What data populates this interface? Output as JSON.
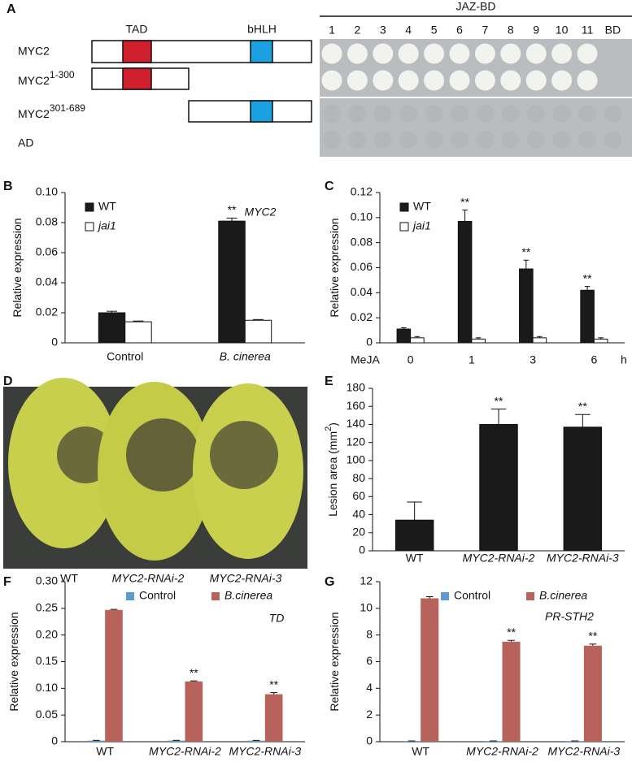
{
  "panels": {
    "a": "A",
    "d": "D"
  },
  "diagram": {
    "domains": [
      "TAD",
      "bHLH"
    ],
    "constructs": [
      {
        "name": "MYC2"
      },
      {
        "name": "MYC2",
        "sup": "1-300"
      },
      {
        "name": "MYC2",
        "sup": "301-689"
      },
      {
        "name": "AD"
      }
    ],
    "header": "JAZ-BD",
    "columns": [
      "1",
      "2",
      "3",
      "4",
      "5",
      "6",
      "7",
      "8",
      "9",
      "10",
      "11",
      "BD"
    ]
  },
  "photo": {
    "labels": [
      "WT",
      "MYC2-RNAi-2",
      "MYC2-RNAi-3"
    ]
  },
  "chart_data": [
    {
      "type": "bar",
      "panel": "B",
      "y_label": "Relative expression",
      "annotation": "MYC2",
      "categories": [
        "Control",
        "B. cinerea"
      ],
      "category_italic": [
        false,
        true
      ],
      "series": [
        {
          "name": "WT",
          "color": "#1a1a1a",
          "values": [
            0.02,
            0.081
          ],
          "errors": [
            0.001,
            0.002
          ],
          "significance": [
            null,
            "**"
          ]
        },
        {
          "name": "jai1",
          "italic": true,
          "color": "#ffffff",
          "values": [
            0.014,
            0.015
          ],
          "errors": [
            0.0005,
            0.0005
          ]
        }
      ],
      "ylim": [
        0,
        0.1
      ],
      "yticks": [
        0,
        0.02,
        0.04,
        0.06,
        0.08,
        {
          "value": 0.1,
          "label": "0.10"
        }
      ],
      "legend": "upper left",
      "bar_outline": true
    },
    {
      "type": "bar",
      "panel": "C",
      "y_label": "Relative expression",
      "x_label": "MeJA",
      "x_unit": "h",
      "categories": [
        "0",
        "1",
        "3",
        "6"
      ],
      "series": [
        {
          "name": "WT",
          "color": "#1a1a1a",
          "values": [
            0.011,
            0.097,
            0.059,
            0.042
          ],
          "errors": [
            0.001,
            0.009,
            0.007,
            0.003
          ],
          "significance": [
            null,
            "**",
            "**",
            "**"
          ]
        },
        {
          "name": "jai1",
          "italic": true,
          "color": "#ffffff",
          "values": [
            0.004,
            0.003,
            0.004,
            0.003
          ],
          "errors": [
            0.001,
            0.001,
            0.001,
            0.001
          ]
        }
      ],
      "ylim": [
        0,
        0.12
      ],
      "yticks": [
        0,
        0.02,
        0.04,
        0.06,
        0.08,
        {
          "value": 0.1,
          "label": "0.10"
        },
        {
          "value": 0.12,
          "label": "0.12"
        }
      ],
      "legend": "upper left",
      "bar_outline": true
    },
    {
      "type": "bar",
      "panel": "E",
      "y_label": "Lesion area (mm",
      "y_label_sup": "2",
      "y_label_end": ")",
      "categories": [
        "WT",
        "MYC2-RNAi-2",
        "MYC2-RNAi-3"
      ],
      "category_italic": [
        false,
        true,
        true
      ],
      "values": [
        34,
        140,
        137
      ],
      "errors": [
        20,
        17,
        14
      ],
      "significance": [
        null,
        "**",
        "**"
      ],
      "color": "#1a1a1a",
      "ylim": [
        0,
        180
      ],
      "yticks": [
        0,
        20,
        40,
        60,
        80,
        100,
        120,
        140,
        160,
        180
      ],
      "bar_outline": true
    },
    {
      "type": "bar",
      "panel": "F",
      "y_label": "Relative expression",
      "annotation": "TD",
      "categories": [
        "WT",
        "MYC2-RNAi-2",
        "MYC2-RNAi-3"
      ],
      "category_italic": [
        false,
        true,
        true
      ],
      "series": [
        {
          "name": "Control",
          "color": "#5b9bd5",
          "values": [
            0.002,
            0.002,
            0.002
          ],
          "errors": [
            0.0005,
            0.0005,
            0.0005
          ]
        },
        {
          "name": "B.cinerea",
          "italic": true,
          "color": "#b8625c",
          "values": [
            0.247,
            0.113,
            0.089
          ],
          "errors": [
            0.001,
            0.001,
            0.003
          ],
          "significance": [
            null,
            "**",
            "**"
          ]
        }
      ],
      "ylim": [
        0,
        0.3
      ],
      "yticks": [
        0,
        0.05,
        {
          "value": 0.1,
          "label": "0.10"
        },
        0.15,
        {
          "value": 0.2,
          "label": "0.20"
        },
        0.25,
        {
          "value": 0.3,
          "label": "0.30"
        }
      ],
      "legend": "upper center",
      "bar_outline": false
    },
    {
      "type": "bar",
      "panel": "G",
      "y_label": "Relative expression",
      "annotation": "PR-STH2",
      "categories": [
        "WT",
        "MYC2-RNAi-2",
        "MYC2-RNAi-3"
      ],
      "category_italic": [
        false,
        true,
        true
      ],
      "series": [
        {
          "name": "Control",
          "color": "#5b9bd5",
          "values": [
            0.05,
            0.05,
            0.05
          ],
          "errors": [
            0.01,
            0.01,
            0.01
          ]
        },
        {
          "name": "B.cinerea",
          "italic": true,
          "color": "#b8625c",
          "values": [
            10.75,
            7.5,
            7.2
          ],
          "errors": [
            0.12,
            0.1,
            0.12
          ],
          "significance": [
            null,
            "**",
            "**"
          ]
        }
      ],
      "ylim": [
        0,
        12
      ],
      "yticks": [
        0,
        2,
        4,
        6,
        8,
        10,
        12
      ],
      "legend": "upper center",
      "bar_outline": false
    }
  ]
}
